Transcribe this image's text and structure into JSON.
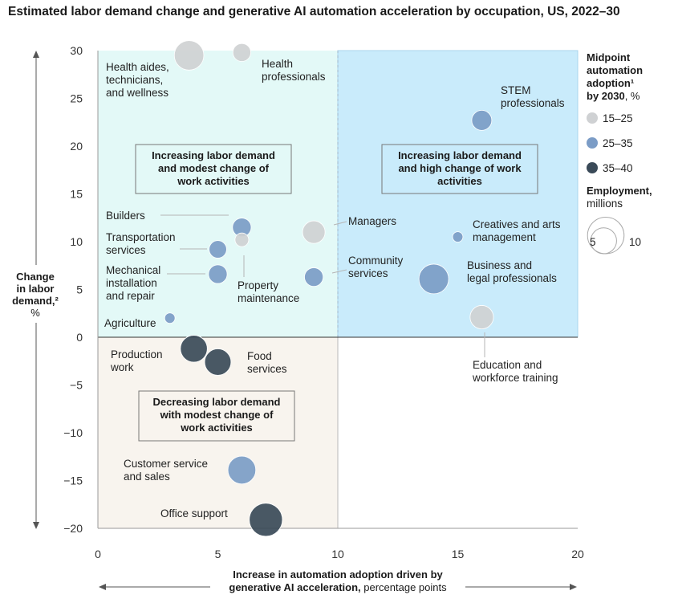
{
  "chart_data": {
    "type": "scatter",
    "title": "Estimated labor demand change and generative AI automation acceleration by occupation, US, 2022–30",
    "xlabel_bold_1": "Increase in automation adoption driven by",
    "xlabel_bold_2": "generative AI acceleration,",
    "xlabel_normal_2": " percentage points",
    "ylabel_lines": [
      "Change",
      "in labor",
      "demand,²",
      "%"
    ],
    "xlim": [
      0,
      20
    ],
    "ylim": [
      -20,
      30
    ],
    "x_ticks": [
      0,
      5,
      10,
      15,
      20
    ],
    "y_ticks": [
      30,
      25,
      20,
      15,
      10,
      5,
      0,
      -5,
      -10,
      -15,
      -20
    ],
    "x_tick_labels": [
      "0",
      "5",
      "10",
      "15",
      "20"
    ],
    "y_tick_labels": [
      "30",
      "25",
      "20",
      "15",
      "10",
      "5",
      "0",
      "−5",
      "−10",
      "−15",
      "−20"
    ],
    "quadrants": [
      {
        "lines": [
          "Increasing labor demand",
          "and modest change of",
          "work activities"
        ],
        "color": "#e3f9f7"
      },
      {
        "lines": [
          "Increasing labor demand",
          "and high change of work",
          "activities"
        ],
        "color": "#c9ebfb"
      },
      {
        "lines": [
          "Decreasing labor demand",
          "with modest change of",
          "work activities"
        ],
        "color": "#f8f4ee"
      }
    ],
    "legend": {
      "color_title_lines": [
        "Midpoint",
        "automation",
        "adoption¹",
        "by 2030, %"
      ],
      "color_items": [
        {
          "label": "15–25",
          "color": "#cfd1d3"
        },
        {
          "label": "25–35",
          "color": "#7b9cc6"
        },
        {
          "label": "35–40",
          "color": "#3a4a58"
        }
      ],
      "size_title_bold": "Employment,",
      "size_title_normal": "millions",
      "size_items": [
        {
          "label": "5",
          "value": 5
        },
        {
          "label": "10",
          "value": 10
        }
      ]
    },
    "series": [
      {
        "name": "Health aides, technicians, and wellness",
        "label_lines": [
          "Health aides,",
          "technicians,",
          "and wellness"
        ],
        "x": 3.8,
        "y": 29.5,
        "employment": 6.5,
        "color": "#cfd1d3"
      },
      {
        "name": "Health professionals",
        "label_lines": [
          "Health",
          "professionals"
        ],
        "x": 6.0,
        "y": 29.8,
        "employment": 2.4,
        "color": "#cfd1d3"
      },
      {
        "name": "STEM professionals",
        "label_lines": [
          "STEM",
          "professionals"
        ],
        "x": 16.0,
        "y": 22.7,
        "employment": 3.0,
        "color": "#7b9cc6"
      },
      {
        "name": "Builders",
        "label_lines": [
          "Builders"
        ],
        "x": 6.0,
        "y": 11.5,
        "employment": 2.6,
        "color": "#7b9cc6"
      },
      {
        "name": "Property maintenance",
        "label_lines": [
          "Property",
          "maintenance"
        ],
        "x": 6.0,
        "y": 10.2,
        "employment": 1.4,
        "color": "#cfd1d3"
      },
      {
        "name": "Transportation services",
        "label_lines": [
          "Transportation",
          "services"
        ],
        "x": 5.0,
        "y": 9.2,
        "employment": 2.3,
        "color": "#7b9cc6"
      },
      {
        "name": "Mechanical installation and repair",
        "label_lines": [
          "Mechanical",
          "installation",
          "and repair"
        ],
        "x": 5.0,
        "y": 6.6,
        "employment": 2.6,
        "color": "#7b9cc6"
      },
      {
        "name": "Managers",
        "label_lines": [
          "Managers"
        ],
        "x": 9.0,
        "y": 11.0,
        "employment": 3.8,
        "color": "#cfd1d3"
      },
      {
        "name": "Community services",
        "label_lines": [
          "Community",
          "services"
        ],
        "x": 9.0,
        "y": 6.3,
        "employment": 2.6,
        "color": "#7b9cc6"
      },
      {
        "name": "Creatives and arts management",
        "label_lines": [
          "Creatives and arts",
          "management"
        ],
        "x": 15.0,
        "y": 10.5,
        "employment": 0.8,
        "color": "#7b9cc6"
      },
      {
        "name": "Business and legal professionals",
        "label_lines": [
          "Business and",
          "legal professionals"
        ],
        "x": 14.0,
        "y": 6.1,
        "employment": 6.6,
        "color": "#7b9cc6"
      },
      {
        "name": "Education and workforce training",
        "label_lines": [
          "Education and",
          "workforce training"
        ],
        "x": 16.0,
        "y": 2.1,
        "employment": 4.1,
        "color": "#cfd1d3"
      },
      {
        "name": "Agriculture",
        "label_lines": [
          "Agriculture"
        ],
        "x": 3.0,
        "y": 2.0,
        "employment": 0.8,
        "color": "#7b9cc6"
      },
      {
        "name": "Production work",
        "label_lines": [
          "Production",
          "work"
        ],
        "x": 4.0,
        "y": -1.2,
        "employment": 5.4,
        "color": "#3a4a58"
      },
      {
        "name": "Food services",
        "label_lines": [
          "Food",
          "services"
        ],
        "x": 5.0,
        "y": -2.6,
        "employment": 5.2,
        "color": "#3a4a58"
      },
      {
        "name": "Customer service and sales",
        "label_lines": [
          "Customer service",
          "and sales"
        ],
        "x": 6.0,
        "y": -13.9,
        "employment": 5.8,
        "color": "#7b9cc6"
      },
      {
        "name": "Office support",
        "label_lines": [
          "Office support"
        ],
        "x": 7.0,
        "y": -19.1,
        "employment": 8.2,
        "color": "#3a4a58"
      }
    ]
  }
}
